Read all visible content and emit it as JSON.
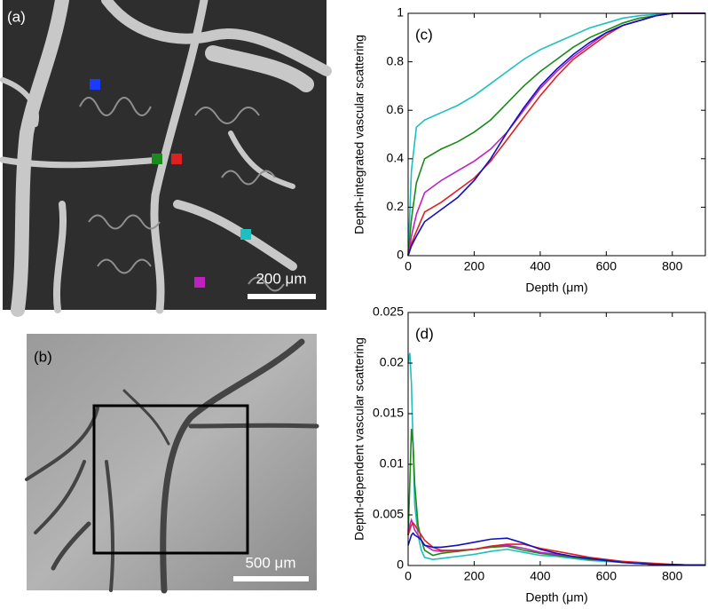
{
  "panels": {
    "a": {
      "label": "(a)",
      "scale_bar": "200 μm"
    },
    "b": {
      "label": "(b)",
      "scale_bar": "500 μm"
    }
  },
  "chart_data": [
    {
      "type": "line",
      "panel_label": "(c)",
      "xlabel": "Depth (μm)",
      "ylabel": "Depth-integrated vascular scattering",
      "x": [
        0,
        10,
        25,
        50,
        100,
        150,
        200,
        250,
        300,
        350,
        400,
        450,
        500,
        550,
        600,
        650,
        700,
        750,
        800,
        850,
        900
      ],
      "xlim": [
        0,
        900
      ],
      "ylim": [
        0,
        1
      ],
      "xticks": [
        0,
        200,
        400,
        600,
        800
      ],
      "yticks": [
        0,
        0.2,
        0.4,
        0.6,
        0.8,
        1
      ],
      "series": [
        {
          "color": "#1fbfbf",
          "values": [
            0,
            0.35,
            0.53,
            0.56,
            0.59,
            0.62,
            0.66,
            0.71,
            0.76,
            0.81,
            0.85,
            0.88,
            0.91,
            0.94,
            0.96,
            0.98,
            0.99,
            0.995,
            1,
            1,
            1
          ]
        },
        {
          "color": "#1a8a1a",
          "values": [
            0,
            0.15,
            0.3,
            0.4,
            0.44,
            0.47,
            0.51,
            0.56,
            0.63,
            0.7,
            0.76,
            0.81,
            0.86,
            0.9,
            0.93,
            0.96,
            0.98,
            0.99,
            1,
            1,
            1
          ]
        },
        {
          "color": "#c020c0",
          "values": [
            0,
            0.08,
            0.17,
            0.26,
            0.31,
            0.35,
            0.39,
            0.44,
            0.51,
            0.6,
            0.69,
            0.76,
            0.82,
            0.87,
            0.92,
            0.95,
            0.97,
            0.99,
            1,
            1,
            1
          ]
        },
        {
          "color": "#e02020",
          "values": [
            0,
            0.05,
            0.1,
            0.18,
            0.22,
            0.27,
            0.32,
            0.39,
            0.48,
            0.57,
            0.66,
            0.74,
            0.81,
            0.86,
            0.91,
            0.95,
            0.97,
            0.99,
            1,
            1,
            1
          ]
        },
        {
          "color": "#1010c0",
          "values": [
            0,
            0.04,
            0.08,
            0.14,
            0.19,
            0.24,
            0.31,
            0.4,
            0.51,
            0.61,
            0.7,
            0.77,
            0.83,
            0.88,
            0.92,
            0.95,
            0.97,
            0.99,
            1,
            1,
            1
          ]
        }
      ]
    },
    {
      "type": "line",
      "panel_label": "(d)",
      "xlabel": "Depth (μm)",
      "ylabel": "Depth-dependent vascular scattering",
      "x": [
        0,
        5,
        10,
        15,
        20,
        30,
        40,
        50,
        75,
        100,
        150,
        200,
        250,
        300,
        350,
        400,
        450,
        500,
        550,
        600,
        650,
        700,
        750,
        800,
        850,
        900
      ],
      "xlim": [
        0,
        900
      ],
      "ylim": [
        0,
        0.025
      ],
      "xticks": [
        0,
        200,
        400,
        600,
        800
      ],
      "yticks": [
        0,
        0.005,
        0.01,
        0.015,
        0.02,
        0.025
      ],
      "series": [
        {
          "color": "#1fbfbf",
          "values": [
            0.02,
            0.021,
            0.018,
            0.012,
            0.006,
            0.003,
            0.0015,
            0.0008,
            0.0006,
            0.0007,
            0.0009,
            0.0011,
            0.0014,
            0.0016,
            0.0013,
            0.001,
            0.0009,
            0.0007,
            0.0005,
            0.0004,
            0.0003,
            0.0002,
            0.0001,
            0.0001,
            5e-05,
            5e-05
          ]
        },
        {
          "color": "#1a8a1a",
          "values": [
            0.003,
            0.008,
            0.0135,
            0.012,
            0.008,
            0.004,
            0.0025,
            0.0015,
            0.001,
            0.0012,
            0.0014,
            0.0016,
            0.0018,
            0.0019,
            0.0015,
            0.0012,
            0.001,
            0.0008,
            0.0006,
            0.0005,
            0.0003,
            0.0002,
            0.0001,
            0.0001,
            5e-05,
            5e-05
          ]
        },
        {
          "color": "#c020c0",
          "values": [
            0.003,
            0.004,
            0.0045,
            0.004,
            0.0035,
            0.003,
            0.0025,
            0.002,
            0.0015,
            0.0014,
            0.0015,
            0.0016,
            0.0019,
            0.002,
            0.0017,
            0.0013,
            0.0011,
            0.0009,
            0.0007,
            0.0005,
            0.0004,
            0.0002,
            0.0001,
            0.0001,
            5e-05,
            5e-05
          ]
        },
        {
          "color": "#e02020",
          "values": [
            0.003,
            0.0035,
            0.004,
            0.0042,
            0.004,
            0.0035,
            0.003,
            0.0025,
            0.0018,
            0.0015,
            0.0015,
            0.0016,
            0.0019,
            0.0021,
            0.0021,
            0.0017,
            0.0014,
            0.0011,
            0.0008,
            0.0006,
            0.0004,
            0.0003,
            0.0002,
            0.0001,
            5e-05,
            5e-05
          ]
        },
        {
          "color": "#1010c0",
          "values": [
            0.002,
            0.0025,
            0.003,
            0.0032,
            0.003,
            0.0028,
            0.0025,
            0.002,
            0.0018,
            0.0018,
            0.002,
            0.0023,
            0.0026,
            0.0027,
            0.0022,
            0.0016,
            0.0012,
            0.0009,
            0.0007,
            0.0005,
            0.0003,
            0.0002,
            0.0001,
            0.0001,
            5e-05,
            5e-05
          ]
        }
      ]
    }
  ]
}
